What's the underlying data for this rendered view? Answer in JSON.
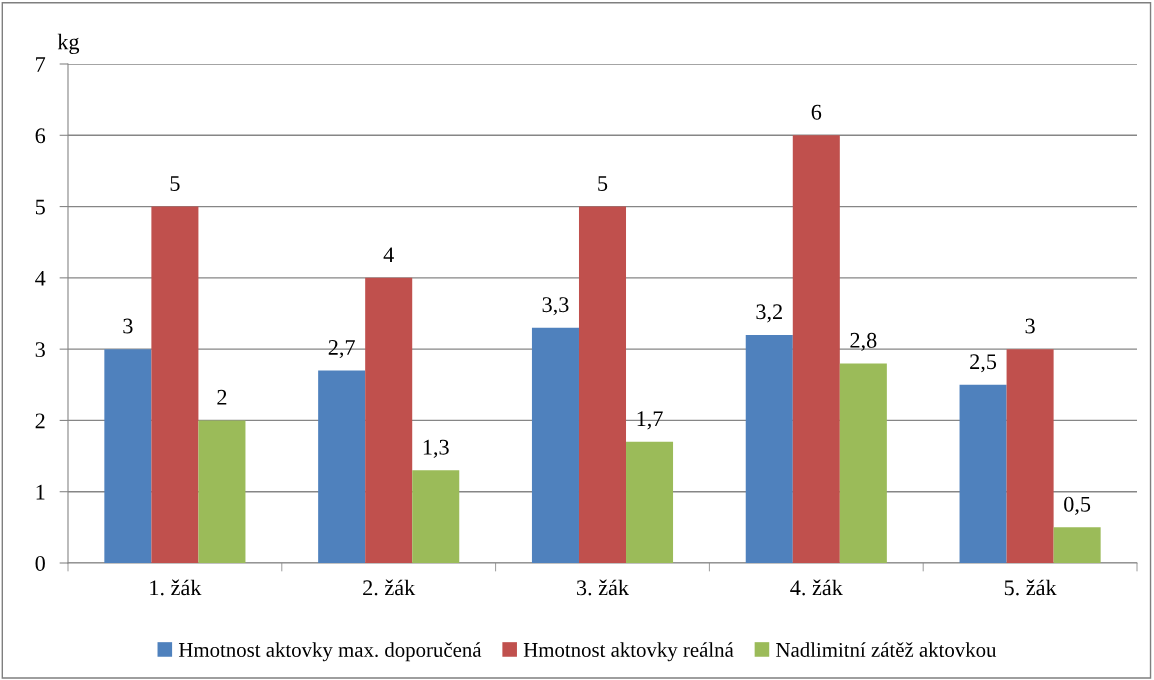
{
  "chart_data": {
    "type": "bar",
    "ylabel": "kg",
    "categories": [
      "1. žák",
      "2. žák",
      "3. žák",
      "4. žák",
      "5. žák"
    ],
    "series": [
      {
        "name": "Hmotnost aktovky max. doporučená",
        "color": "#4f81bd",
        "values": [
          3,
          2.7,
          3.3,
          3.2,
          2.5
        ],
        "value_labels": [
          "3",
          "2,7",
          "3,3",
          "3,2",
          "2,5"
        ]
      },
      {
        "name": "Hmotnost aktovky reálná",
        "color": "#c0504d",
        "values": [
          5,
          4,
          5,
          6,
          3
        ],
        "value_labels": [
          "5",
          "4",
          "5",
          "6",
          "3"
        ]
      },
      {
        "name": "Nadlimitní zátěž aktovkou",
        "color": "#9bbb59",
        "values": [
          2,
          1.3,
          1.7,
          2.8,
          0.5
        ],
        "value_labels": [
          "2",
          "1,3",
          "1,7",
          "2,8",
          "0,5"
        ]
      }
    ],
    "ylim": [
      0,
      7
    ],
    "yticks": [
      0,
      1,
      2,
      3,
      4,
      5,
      6,
      7
    ],
    "grid": "y",
    "legend": "bottom"
  }
}
